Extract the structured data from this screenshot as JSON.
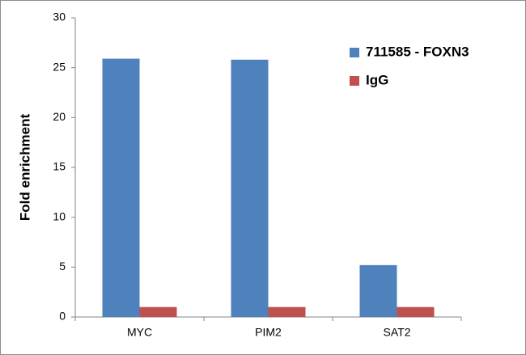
{
  "chart_data": {
    "type": "bar",
    "y_label": "Fold enrichment",
    "categories": [
      "MYC",
      "PIM2",
      "SAT2"
    ],
    "series": [
      {
        "name": "711585 - FOXN3",
        "color": "#4f81bd",
        "values": [
          25.9,
          25.8,
          5.2
        ]
      },
      {
        "name": "IgG",
        "color": "#c0504d",
        "values": [
          1,
          1,
          1
        ]
      }
    ],
    "ylim": [
      0,
      30
    ],
    "yticks": [
      0,
      5,
      10,
      15,
      20,
      25,
      30
    ],
    "grid": false,
    "legend": "top-right"
  }
}
